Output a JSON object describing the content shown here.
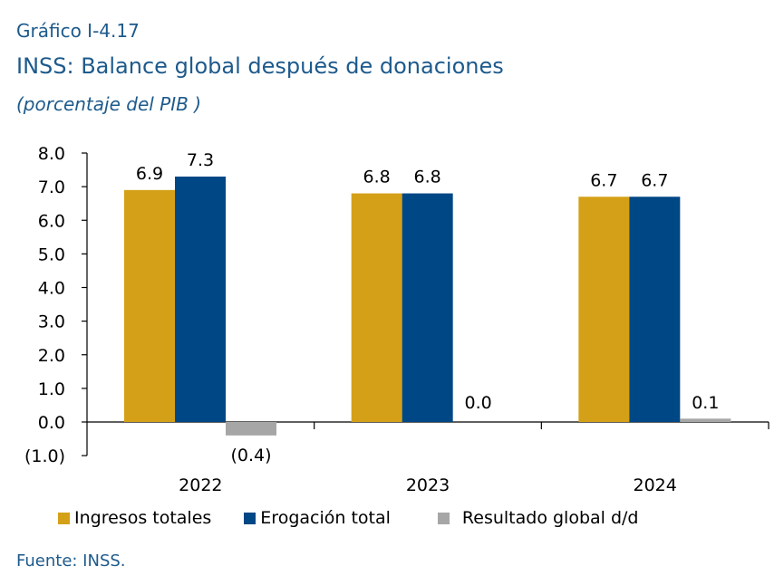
{
  "header": {
    "figure_label": "Gráfico I-4.17",
    "title": "INSS: Balance global después de donaciones",
    "units": "(porcentaje del PIB )"
  },
  "footer": {
    "source": "Fuente: INSS."
  },
  "chart_data": {
    "type": "bar",
    "categories": [
      "2022",
      "2023",
      "2024"
    ],
    "series": [
      {
        "name": "Ingresos totales",
        "color": "#d4a017",
        "values": [
          6.9,
          6.8,
          6.7
        ],
        "labels": [
          "6.9",
          "6.8",
          "6.7"
        ]
      },
      {
        "name": "Erogación total",
        "color": "#004785",
        "values": [
          7.3,
          6.8,
          6.7
        ],
        "labels": [
          "7.3",
          "6.8",
          "6.7"
        ]
      },
      {
        "name": "Resultado global d/d",
        "color": "#a6a6a6",
        "values": [
          -0.4,
          0.0,
          0.1
        ],
        "labels": [
          "(0.4)",
          "0.0",
          "0.1"
        ]
      }
    ],
    "ylim": [
      -1.0,
      8.0
    ],
    "yticks": [
      "(1.0)",
      "0.0",
      "1.0",
      "2.0",
      "3.0",
      "4.0",
      "5.0",
      "6.0",
      "7.0",
      "8.0"
    ],
    "grid": false,
    "legend_position": "bottom"
  }
}
